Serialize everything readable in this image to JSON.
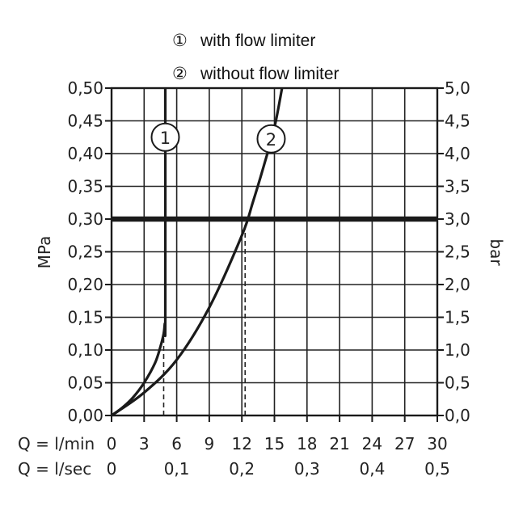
{
  "chart_data": {
    "type": "line",
    "legend": [
      {
        "marker": "①",
        "label": "with flow limiter"
      },
      {
        "marker": "②",
        "label": "without flow limiter"
      }
    ],
    "x_axis": {
      "label_lmin": "Q = l/min",
      "label_lsec": "Q = l/sec",
      "range_lmin": [
        0,
        30
      ],
      "ticks_lmin": [
        "0",
        "3",
        "6",
        "9",
        "12",
        "15",
        "18",
        "21",
        "24",
        "27",
        "30"
      ],
      "ticks_lsec": [
        "0",
        "0,1",
        "0,2",
        "0,3",
        "0,4",
        "0,5"
      ],
      "ticks_lsec_values": [
        0,
        0.1,
        0.2,
        0.3,
        0.4,
        0.5
      ]
    },
    "y_axis_left": {
      "label": "MPa",
      "range": [
        0,
        0.5
      ],
      "ticks": [
        "0,00",
        "0,05",
        "0,10",
        "0,15",
        "0,20",
        "0,25",
        "0,30",
        "0,35",
        "0,40",
        "0,45",
        "0,50"
      ]
    },
    "y_axis_right": {
      "label": "bar",
      "range": [
        0,
        5
      ],
      "ticks": [
        "0,0",
        "0,5",
        "1,0",
        "1,5",
        "2,0",
        "2,5",
        "3,0",
        "3,5",
        "4,0",
        "4,5",
        "5,0"
      ]
    },
    "grid": true,
    "reference_line_mpa": 0.3,
    "series": [
      {
        "marker": "1",
        "x": [
          0,
          1,
          2,
          3,
          4,
          4.5,
          4.8,
          4.9,
          4.95,
          4.95
        ],
        "y": [
          0,
          0.012,
          0.028,
          0.05,
          0.08,
          0.105,
          0.125,
          0.14,
          0.15,
          0.5
        ],
        "dropline_x": 4.8
      },
      {
        "marker": "2",
        "x": [
          0,
          3,
          6,
          9,
          12,
          13,
          14,
          15,
          15.7
        ],
        "y": [
          0,
          0.035,
          0.085,
          0.165,
          0.275,
          0.325,
          0.38,
          0.44,
          0.5
        ],
        "dropline_x": 12.3
      }
    ]
  }
}
